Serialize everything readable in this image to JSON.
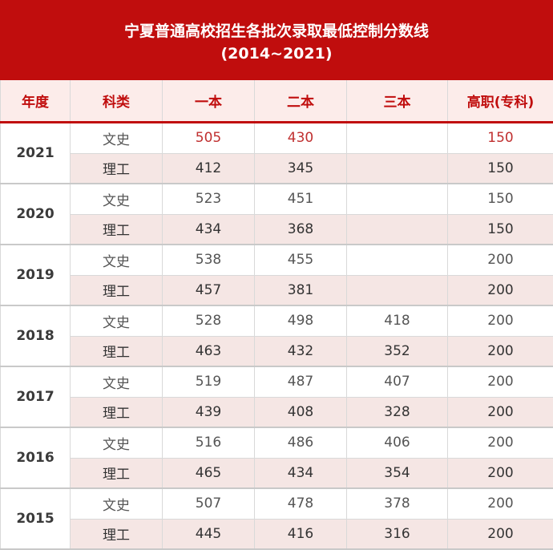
{
  "header": {
    "title_line1": "宁夏普通高校招生各批次录取最低控制分数线",
    "title_line2": "(2014~2021)"
  },
  "columns": [
    "年度",
    "科类",
    "一本",
    "二本",
    "三本",
    "高职(专科)"
  ],
  "rows": [
    {
      "year": "2021",
      "entries": [
        {
          "category": "文史",
          "tier1": "505",
          "tier2": "430",
          "tier3": "",
          "vocational": "150"
        },
        {
          "category": "理工",
          "tier1": "412",
          "tier2": "345",
          "tier3": "",
          "vocational": "150"
        }
      ]
    },
    {
      "year": "2020",
      "entries": [
        {
          "category": "文史",
          "tier1": "523",
          "tier2": "451",
          "tier3": "",
          "vocational": "150"
        },
        {
          "category": "理工",
          "tier1": "434",
          "tier2": "368",
          "tier3": "",
          "vocational": "150"
        }
      ]
    },
    {
      "year": "2019",
      "entries": [
        {
          "category": "文史",
          "tier1": "538",
          "tier2": "455",
          "tier3": "",
          "vocational": "200"
        },
        {
          "category": "理工",
          "tier1": "457",
          "tier2": "381",
          "tier3": "",
          "vocational": "200"
        }
      ]
    },
    {
      "year": "2018",
      "entries": [
        {
          "category": "文史",
          "tier1": "528",
          "tier2": "498",
          "tier3": "418",
          "vocational": "200"
        },
        {
          "category": "理工",
          "tier1": "463",
          "tier2": "432",
          "tier3": "352",
          "vocational": "200"
        }
      ]
    },
    {
      "year": "2017",
      "entries": [
        {
          "category": "文史",
          "tier1": "519",
          "tier2": "487",
          "tier3": "407",
          "vocational": "200"
        },
        {
          "category": "理工",
          "tier1": "439",
          "tier2": "408",
          "tier3": "328",
          "vocational": "200"
        }
      ]
    },
    {
      "year": "2016",
      "entries": [
        {
          "category": "文史",
          "tier1": "516",
          "tier2": "486",
          "tier3": "406",
          "vocational": "200"
        },
        {
          "category": "理工",
          "tier1": "465",
          "tier2": "434",
          "tier3": "354",
          "vocational": "200"
        }
      ]
    },
    {
      "year": "2015",
      "entries": [
        {
          "category": "文史",
          "tier1": "507",
          "tier2": "478",
          "tier3": "378",
          "vocational": "200"
        },
        {
          "category": "理工",
          "tier1": "445",
          "tier2": "416",
          "tier3": "316",
          "vocational": "200"
        }
      ]
    }
  ],
  "colors": {
    "header_bg": "#c00d0d",
    "header_text": "#ffffff",
    "column_header_bg": "#fcecea",
    "column_header_text": "#c00d0d",
    "alt_row_bg": "#f5e6e4",
    "highlight_text": "#c03030"
  }
}
